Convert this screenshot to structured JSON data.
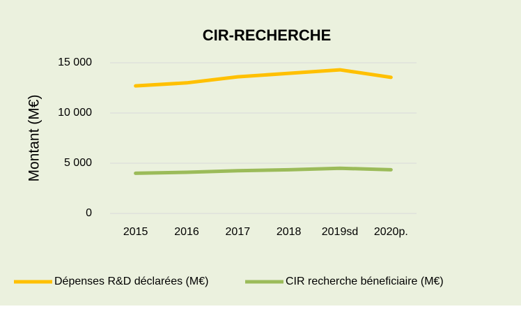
{
  "chart_data": {
    "type": "line",
    "title": "CIR-RECHERCHE",
    "y_label": "Montant (M€)",
    "categories": [
      "2015",
      "2016",
      "2017",
      "2018",
      "2019sd",
      "2020p."
    ],
    "series": [
      {
        "name": "Dépenses R&D déclarées (M€)",
        "color": "#ffc000",
        "values": [
          12700,
          13000,
          13600,
          13950,
          14300,
          13550
        ]
      },
      {
        "name": "CIR recherche béneficiaire (M€)",
        "color": "#9bbb59",
        "values": [
          4000,
          4100,
          4250,
          4350,
          4500,
          4350
        ]
      }
    ],
    "ylim": [
      0,
      15000
    ],
    "yticks": [
      0,
      {
        "value": 5000,
        "label": "5 000"
      },
      {
        "value": 10000,
        "label": "10 000"
      },
      {
        "value": 15000,
        "label": "15 000"
      }
    ],
    "grid": true,
    "legend": "bottom"
  }
}
